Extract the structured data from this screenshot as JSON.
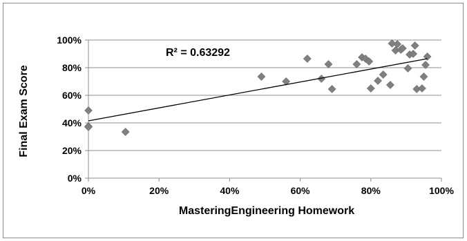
{
  "chart_data": {
    "type": "scatter",
    "title": "",
    "xlabel": "MasteringEngineering Homework",
    "ylabel": "Final Exam Score",
    "xlim": [
      0,
      1
    ],
    "ylim": [
      0,
      1
    ],
    "x_ticks": [
      "0%",
      "20%",
      "40%",
      "60%",
      "80%",
      "100%"
    ],
    "y_ticks": [
      "0%",
      "20%",
      "40%",
      "60%",
      "80%",
      "100%"
    ],
    "grid": "horizontal",
    "legend": "none",
    "marker": "diamond",
    "marker_color": "#808080",
    "trendline": {
      "type": "linear",
      "x": [
        0,
        0.96
      ],
      "y": [
        0.415,
        0.865
      ],
      "color": "#000000"
    },
    "annotation": "R² = 0.63292",
    "series": [
      {
        "points": [
          [
            0.0,
            0.49
          ],
          [
            0.0,
            0.375
          ],
          [
            0.0,
            0.37
          ],
          [
            0.105,
            0.335
          ],
          [
            0.49,
            0.735
          ],
          [
            0.56,
            0.7
          ],
          [
            0.62,
            0.865
          ],
          [
            0.66,
            0.72
          ],
          [
            0.68,
            0.825
          ],
          [
            0.69,
            0.645
          ],
          [
            0.76,
            0.825
          ],
          [
            0.775,
            0.875
          ],
          [
            0.785,
            0.865
          ],
          [
            0.795,
            0.845
          ],
          [
            0.8,
            0.65
          ],
          [
            0.82,
            0.705
          ],
          [
            0.835,
            0.75
          ],
          [
            0.855,
            0.675
          ],
          [
            0.86,
            0.975
          ],
          [
            0.87,
            0.925
          ],
          [
            0.875,
            0.97
          ],
          [
            0.885,
            0.93
          ],
          [
            0.89,
            0.94
          ],
          [
            0.905,
            0.795
          ],
          [
            0.91,
            0.895
          ],
          [
            0.92,
            0.9
          ],
          [
            0.925,
            0.96
          ],
          [
            0.93,
            0.645
          ],
          [
            0.945,
            0.65
          ],
          [
            0.95,
            0.735
          ],
          [
            0.955,
            0.82
          ],
          [
            0.96,
            0.88
          ]
        ]
      }
    ]
  }
}
